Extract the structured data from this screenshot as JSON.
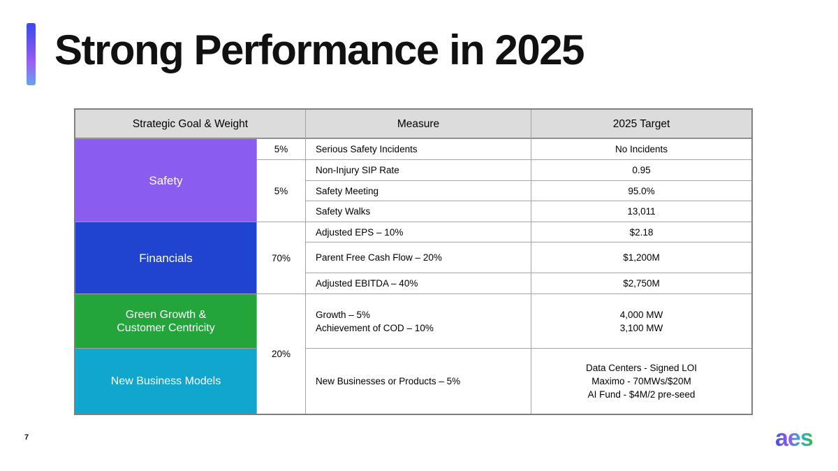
{
  "slide": {
    "title": "Strong Performance in 2025",
    "page_number": "7",
    "logo_text": "aes"
  },
  "table": {
    "header": {
      "goal_weight": "Strategic Goal & Weight",
      "measure": "Measure",
      "target": "2025 Target"
    },
    "goals": [
      {
        "label": "Safety",
        "color": "#8a5cef"
      },
      {
        "label": "Financials",
        "color": "#2144d0"
      },
      {
        "label": "Green Growth &\nCustomer Centricity",
        "color": "#23a53c"
      },
      {
        "label": "New Business Models",
        "color": "#10a6ce"
      }
    ],
    "weights": [
      "5%",
      "5%",
      "70%",
      "20%"
    ],
    "rows": [
      {
        "measure": "Serious Safety Incidents",
        "target": "No Incidents"
      },
      {
        "measure": "Non-Injury SIP Rate",
        "target": "0.95"
      },
      {
        "measure": "Safety Meeting",
        "target": "95.0%"
      },
      {
        "measure": "Safety Walks",
        "target": "13,011"
      },
      {
        "measure": "Adjusted EPS – 10%",
        "target": "$2.18"
      },
      {
        "measure": "Parent Free Cash Flow – 20%",
        "target": "$1,200M"
      },
      {
        "measure": "Adjusted EBITDA – 40%",
        "target": "$2,750M"
      },
      {
        "measure": "Growth – 5%\nAchievement of COD – 10%",
        "target": "4,000 MW\n3,100 MW"
      },
      {
        "measure": "New Businesses or Products – 5%",
        "target": "Data Centers - Signed LOI\nMaximo - 70MWs/$20M\nAI Fund - $4M/2 pre-seed"
      }
    ]
  },
  "colors": {
    "header_bg": "#dcdcdc",
    "grid_line": "#a3a3a3",
    "outer_border": "#7f7f7f",
    "accent_bar_top": "#3a4bec",
    "accent_bar_mid": "#9a5ef2",
    "accent_bar_bottom": "#66a3f0",
    "logo_gradient_start": "#4650e6",
    "logo_gradient_purple": "#8a5cf0",
    "logo_gradient_teal": "#2fb3c6",
    "logo_gradient_end": "#3cb44d"
  }
}
